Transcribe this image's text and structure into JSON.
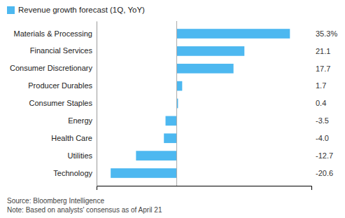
{
  "chart_data": {
    "type": "bar",
    "orientation": "horizontal",
    "categories": [
      "Technology",
      "Utilities",
      "Health Care",
      "Energy",
      "Consumer Staples",
      "Producer Durables",
      "Consumer Discretionary",
      "Financial Services",
      "Materials & Processing"
    ],
    "series": [
      {
        "name": "Revenue growth forecast (1Q, YoY)",
        "color": "#4db8f0",
        "values": [
          -20.6,
          -12.7,
          -4.0,
          -3.5,
          0.4,
          1.7,
          17.7,
          21.1,
          35.3
        ],
        "value_labels": [
          "-20.6",
          "-12.7",
          "-4.0",
          "-3.5",
          "0.4",
          "1.7",
          "17.7",
          "21.1",
          "35.3%"
        ]
      }
    ],
    "xlim": [
      -25,
      42
    ],
    "xticks": [],
    "tick_labels": "y",
    "data_labels": true,
    "legend": "upper left",
    "grid": false,
    "annotations": [
      "Source: Bloomberg Intelligence",
      "Note: Based on analysts' consensus as of April 21"
    ]
  }
}
